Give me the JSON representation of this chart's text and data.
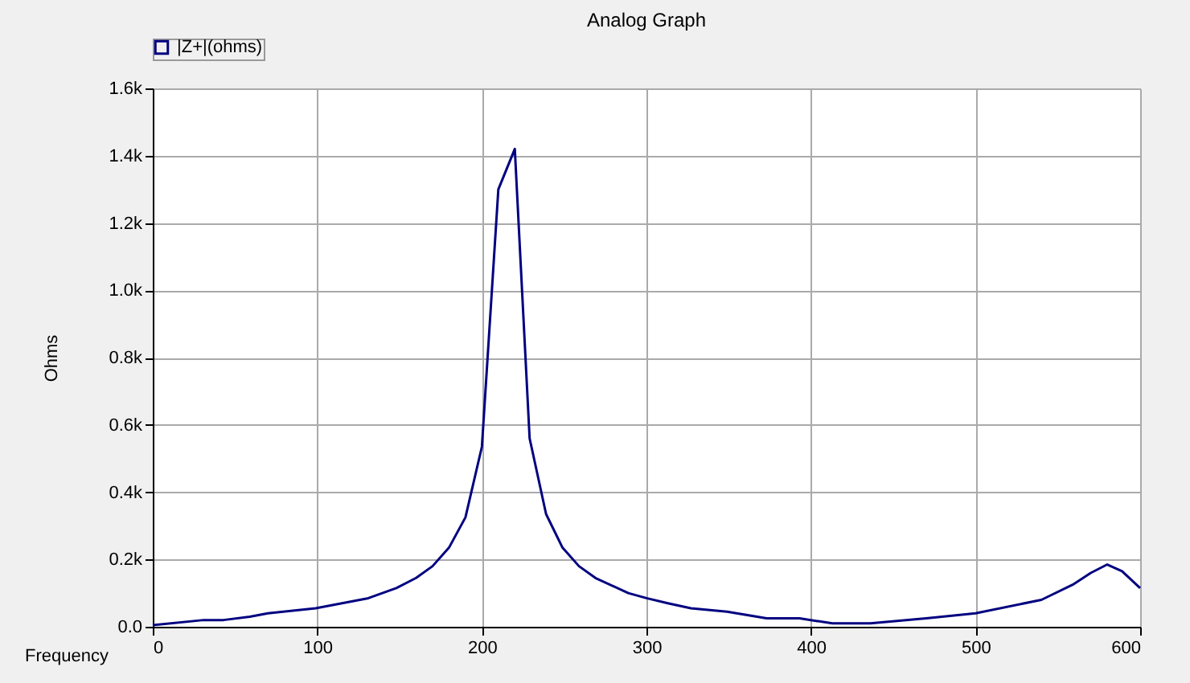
{
  "chart_data": {
    "type": "line",
    "title": "Analog Graph",
    "xlabel": "Frequency",
    "ylabel": "Ohms",
    "x": [
      0,
      31,
      43,
      59,
      70,
      99,
      131,
      148,
      160,
      170,
      180,
      190,
      200,
      210,
      220,
      229,
      239,
      249,
      259,
      269,
      289,
      300,
      313,
      327,
      349,
      373,
      393,
      413,
      436,
      470,
      500,
      540,
      559,
      570,
      580,
      589,
      600
    ],
    "series": [
      {
        "name": "|Z+|(ohms)",
        "color": "#000080",
        "values": [
          5,
          20,
          20,
          30,
          40,
          55,
          85,
          115,
          145,
          180,
          235,
          325,
          535,
          1300,
          1420,
          560,
          335,
          235,
          180,
          145,
          100,
          85,
          70,
          55,
          45,
          25,
          25,
          10,
          10,
          25,
          40,
          80,
          125,
          160,
          185,
          165,
          115
        ]
      }
    ],
    "xlim": [
      0,
      600
    ],
    "xticks": [
      0,
      100,
      200,
      300,
      400,
      500,
      600
    ],
    "ylim": [
      0,
      1600
    ],
    "yticks": [
      {
        "value": 0,
        "label": "0.0"
      },
      {
        "value": 200,
        "label": "0.2k"
      },
      {
        "value": 400,
        "label": "0.4k"
      },
      {
        "value": 600,
        "label": "0.6k"
      },
      {
        "value": 800,
        "label": "0.8k"
      },
      {
        "value": 1000,
        "label": "1.0k"
      },
      {
        "value": 1200,
        "label": "1.2k"
      },
      {
        "value": 1400,
        "label": "1.4k"
      },
      {
        "value": 1600,
        "label": "1.6k"
      }
    ],
    "grid": true,
    "legend": "top left",
    "line_style": "solid",
    "marker": "none"
  }
}
